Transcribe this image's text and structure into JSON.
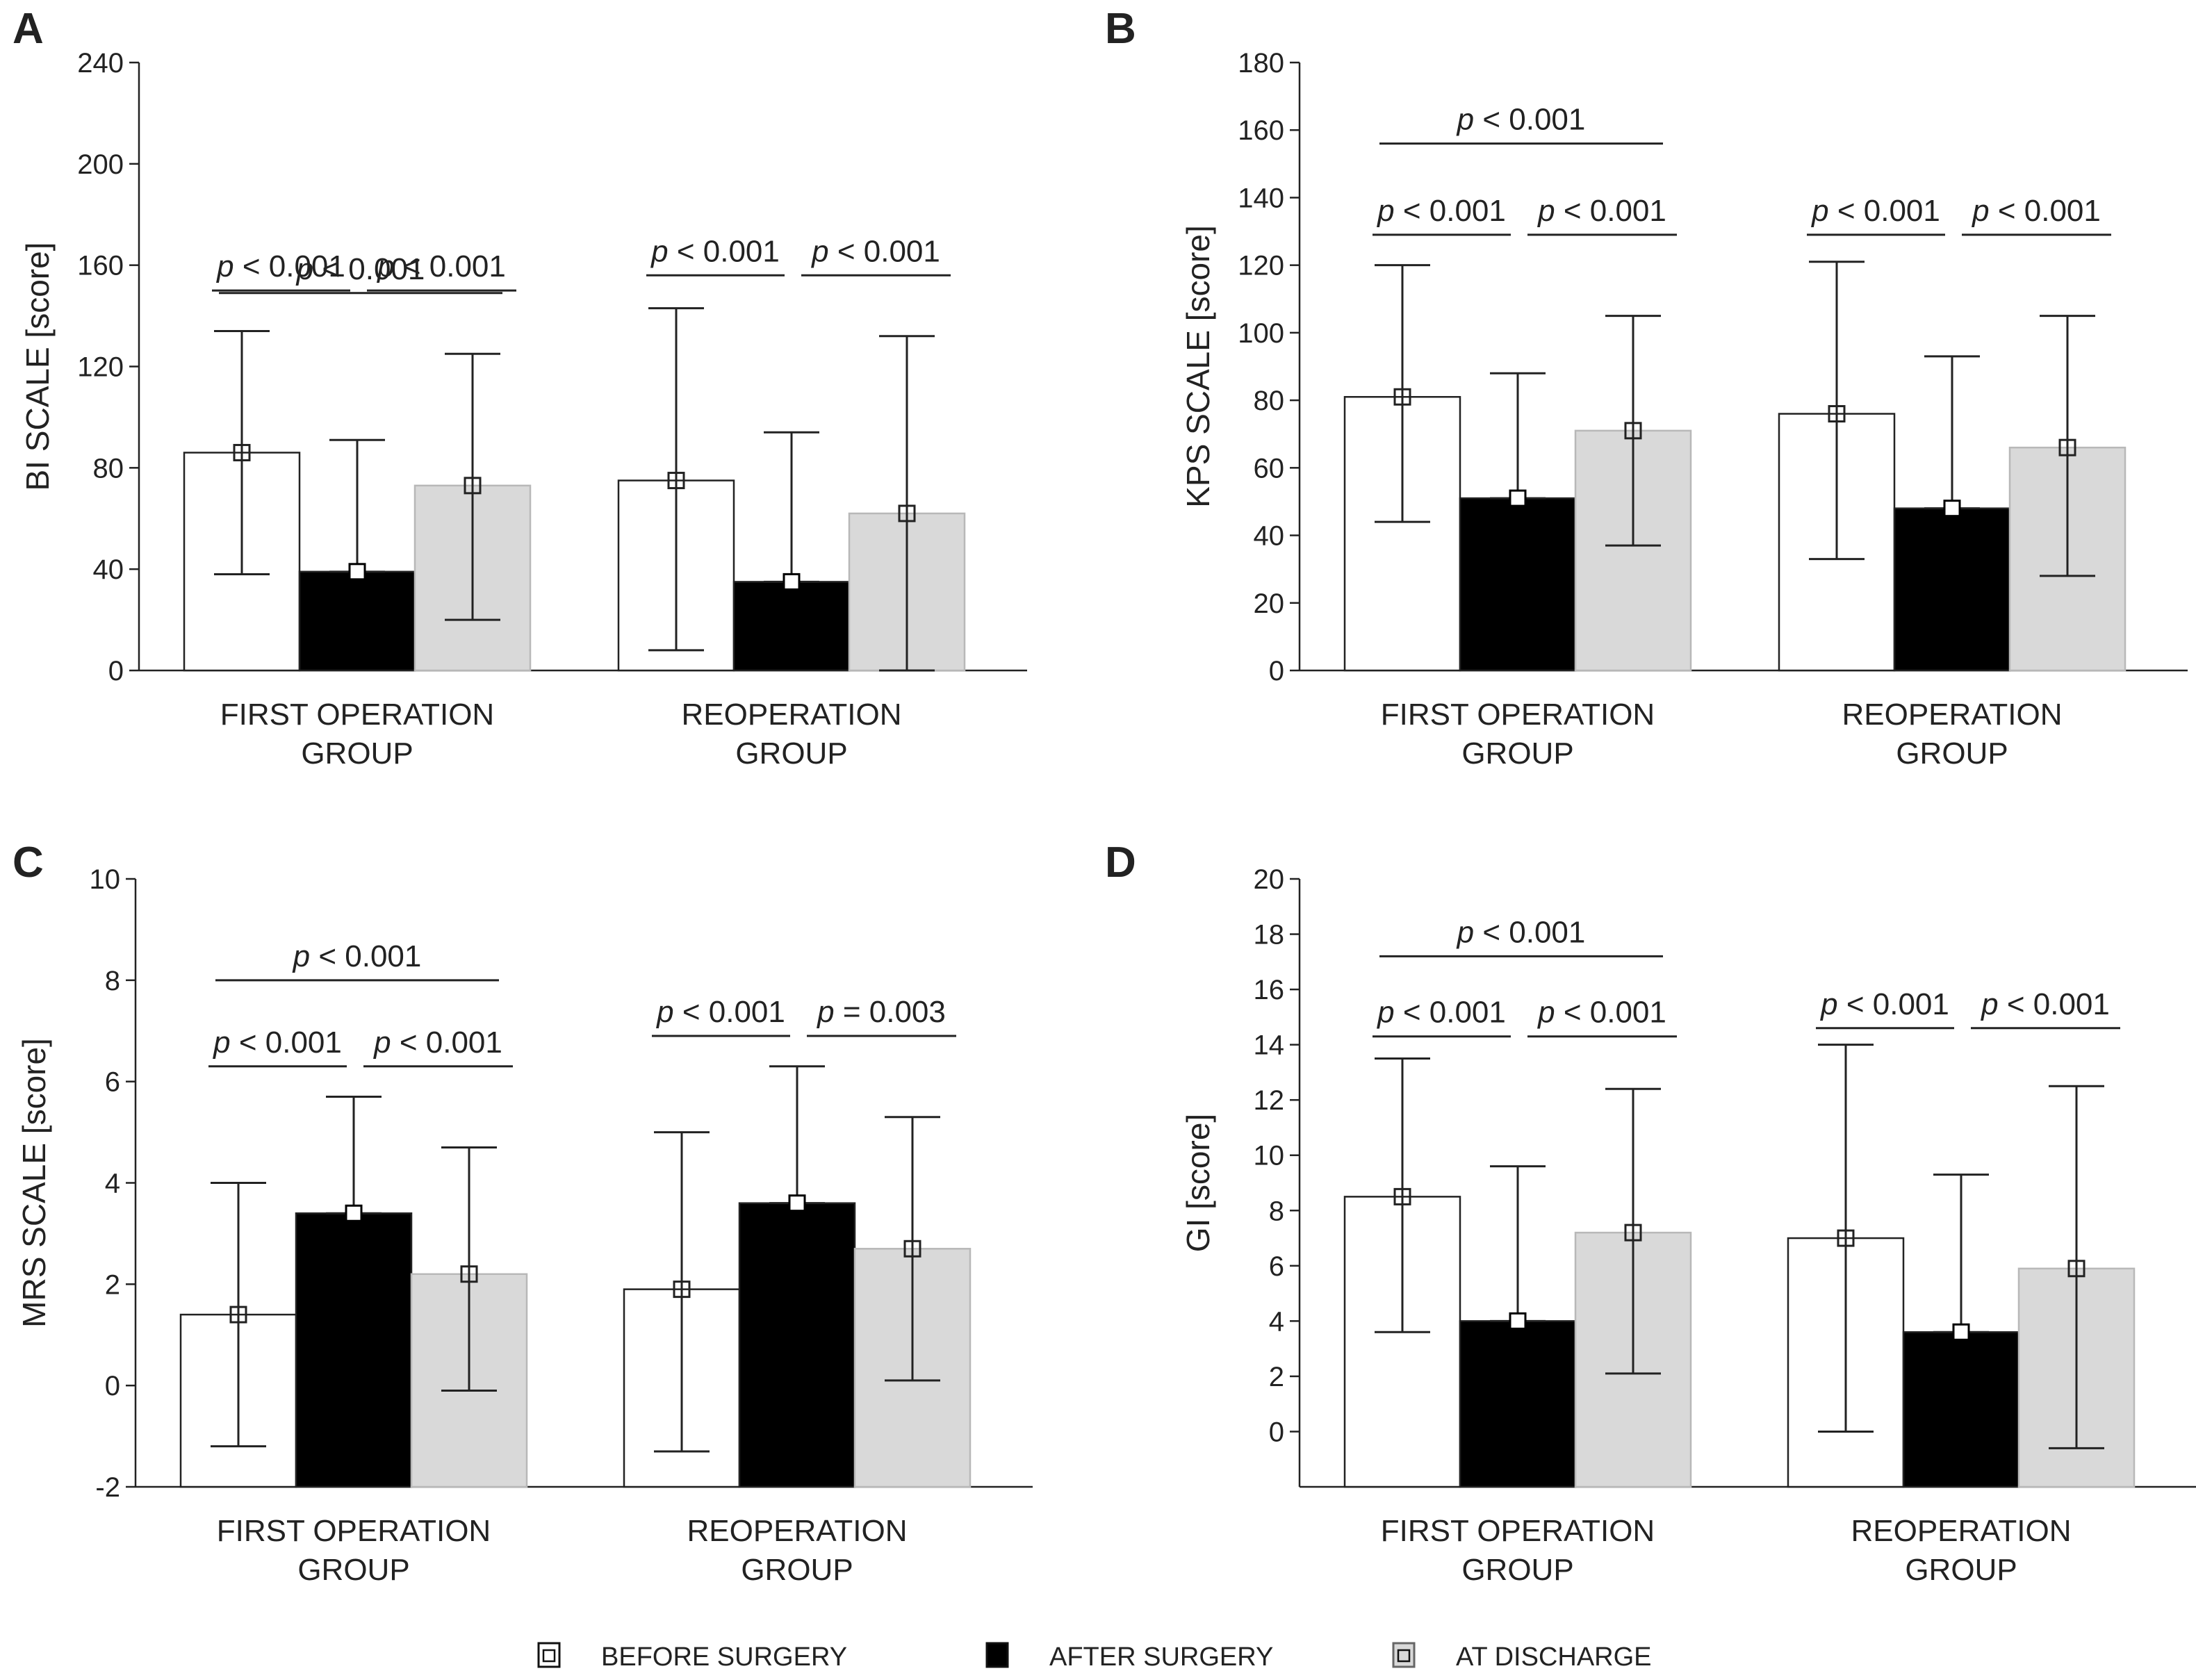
{
  "chart_data": [
    {
      "type": "bar",
      "panel": "A",
      "ylabel": "BI SCALE [score]",
      "ylim": [
        0,
        240
      ],
      "yticks": [
        0,
        40,
        80,
        120,
        160,
        200,
        240
      ],
      "categories": [
        "FIRST OPERATION|GROUP",
        "REOPERATION|GROUP"
      ],
      "series": [
        {
          "name": "BEFORE SURGERY",
          "values": [
            86,
            75
          ],
          "error_low": [
            38,
            8
          ],
          "error_high": [
            134,
            143
          ]
        },
        {
          "name": "AFTER SURGERY",
          "values": [
            39,
            35
          ],
          "error_low": [
            39,
            35
          ],
          "error_high": [
            91,
            94
          ]
        },
        {
          "name": "AT DISCHARGE",
          "values": [
            73,
            62
          ],
          "error_low": [
            20,
            0
          ],
          "error_high": [
            125,
            132
          ]
        }
      ],
      "annotations": [
        {
          "group": 0,
          "from": 0,
          "to": 2,
          "value": 149,
          "text": "p < 0.001"
        },
        {
          "group": 0,
          "from": 0,
          "to": 1,
          "value": 150,
          "text": "p < 0.001",
          "tier": "low"
        },
        {
          "group": 0,
          "from": 1,
          "to": 2,
          "value": 150,
          "text": "p < 0.001",
          "tier": "low"
        },
        {
          "group": 1,
          "from": 0,
          "to": 1,
          "value": 156,
          "text": "p < 0.001"
        },
        {
          "group": 1,
          "from": 1,
          "to": 2,
          "value": 156,
          "text": "p < 0.001"
        }
      ]
    },
    {
      "type": "bar",
      "panel": "B",
      "ylabel": "KPS SCALE [score]",
      "ylim": [
        0,
        180
      ],
      "yticks": [
        0,
        20,
        40,
        60,
        80,
        100,
        120,
        140,
        160,
        180
      ],
      "categories": [
        "FIRST OPERATION|GROUP",
        "REOPERATION|GROUP"
      ],
      "series": [
        {
          "name": "BEFORE SURGERY",
          "values": [
            81,
            76
          ],
          "error_low": [
            44,
            33
          ],
          "error_high": [
            120,
            121
          ]
        },
        {
          "name": "AFTER SURGERY",
          "values": [
            51,
            48
          ],
          "error_low": [
            51,
            48
          ],
          "error_high": [
            88,
            93
          ]
        },
        {
          "name": "AT DISCHARGE",
          "values": [
            71,
            66
          ],
          "error_low": [
            37,
            28
          ],
          "error_high": [
            105,
            105
          ]
        }
      ],
      "annotations": [
        {
          "group": 0,
          "from": 0,
          "to": 2,
          "value": 156,
          "text": "p < 0.001"
        },
        {
          "group": 0,
          "from": 0,
          "to": 1,
          "value": 129,
          "text": "p < 0.001"
        },
        {
          "group": 0,
          "from": 1,
          "to": 2,
          "value": 129,
          "text": "p < 0.001"
        },
        {
          "group": 1,
          "from": 0,
          "to": 1,
          "value": 129,
          "text": "p < 0.001"
        },
        {
          "group": 1,
          "from": 1,
          "to": 2,
          "value": 129,
          "text": "p < 0.001"
        }
      ]
    },
    {
      "type": "bar",
      "panel": "C",
      "ylabel": "MRS SCALE [score]",
      "ylim": [
        -2,
        10
      ],
      "yticks": [
        -2,
        0,
        2,
        4,
        6,
        8,
        10
      ],
      "categories": [
        "FIRST OPERATION|GROUP",
        "REOPERATION|GROUP"
      ],
      "series": [
        {
          "name": "BEFORE SURGERY",
          "values": [
            1.4,
            1.9
          ],
          "error_low": [
            -1.2,
            -1.3
          ],
          "error_high": [
            4.0,
            5.0
          ]
        },
        {
          "name": "AFTER SURGERY",
          "values": [
            3.4,
            3.6
          ],
          "error_low": [
            3.4,
            3.6
          ],
          "error_high": [
            5.7,
            6.3
          ]
        },
        {
          "name": "AT DISCHARGE",
          "values": [
            2.2,
            2.7
          ],
          "error_low": [
            -0.1,
            0.1
          ],
          "error_high": [
            4.7,
            5.3
          ]
        }
      ],
      "annotations": [
        {
          "group": 0,
          "from": 0,
          "to": 2,
          "value": 8.0,
          "text": "p < 0.001"
        },
        {
          "group": 0,
          "from": 0,
          "to": 1,
          "value": 6.3,
          "text": "p < 0.001"
        },
        {
          "group": 0,
          "from": 1,
          "to": 2,
          "value": 6.3,
          "text": "p < 0.001"
        },
        {
          "group": 1,
          "from": 0,
          "to": 1,
          "value": 6.9,
          "text": "p < 0.001"
        },
        {
          "group": 1,
          "from": 1,
          "to": 2,
          "value": 6.9,
          "text": "p = 0.003"
        }
      ]
    },
    {
      "type": "bar",
      "panel": "D",
      "ylabel": "GI [score]",
      "ylim": [
        -2,
        20
      ],
      "yticks": [
        0,
        2,
        4,
        6,
        8,
        10,
        12,
        14,
        16,
        18,
        20
      ],
      "categories": [
        "FIRST OPERATION|GROUP",
        "REOPERATION|GROUP"
      ],
      "series": [
        {
          "name": "BEFORE SURGERY",
          "values": [
            8.5,
            7.0
          ],
          "error_low": [
            3.6,
            0.0
          ],
          "error_high": [
            13.5,
            14.0
          ]
        },
        {
          "name": "AFTER SURGERY",
          "values": [
            4.0,
            3.6
          ],
          "error_low": [
            4.0,
            3.6
          ],
          "error_high": [
            9.6,
            9.3
          ]
        },
        {
          "name": "AT DISCHARGE",
          "values": [
            7.2,
            5.9
          ],
          "error_low": [
            2.1,
            -0.6
          ],
          "error_high": [
            12.4,
            12.5
          ]
        }
      ],
      "annotations": [
        {
          "group": 0,
          "from": 0,
          "to": 2,
          "value": 17.2,
          "text": "p < 0.001"
        },
        {
          "group": 0,
          "from": 0,
          "to": 1,
          "value": 14.3,
          "text": "p < 0.001"
        },
        {
          "group": 0,
          "from": 1,
          "to": 2,
          "value": 14.3,
          "text": "p < 0.001"
        },
        {
          "group": 1,
          "from": 0,
          "to": 1,
          "value": 14.6,
          "text": "p < 0.001"
        },
        {
          "group": 1,
          "from": 1,
          "to": 2,
          "value": 14.6,
          "text": "p < 0.001"
        }
      ]
    }
  ],
  "legend": {
    "placement": "bottom-center",
    "items": [
      {
        "label": "BEFORE SURGERY",
        "color": "#ffffff"
      },
      {
        "label": "AFTER SURGERY",
        "color": "#000000"
      },
      {
        "label": "AT DISCHARGE",
        "color": "#d9d9d9"
      }
    ]
  },
  "colors": {
    "before": "#ffffff",
    "after": "#000000",
    "discharge": "#d9d9d9",
    "stroke": "#222222"
  }
}
